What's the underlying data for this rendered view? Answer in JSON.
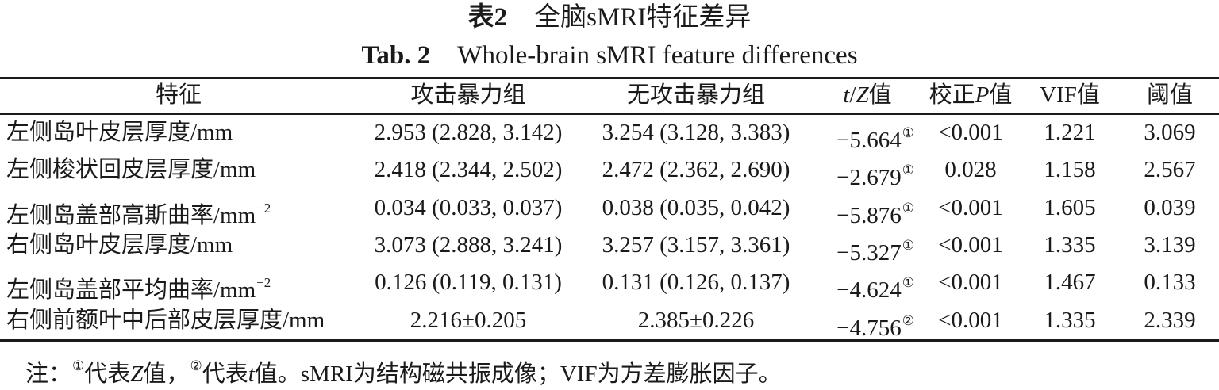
{
  "title": {
    "cn_tab": "表2",
    "cn_text": "全脑sMRI特征差异",
    "en_tab": "Tab. 2",
    "en_text": "Whole-brain sMRI feature differences"
  },
  "header": {
    "feature": "特征",
    "aggressive": "攻击暴力组",
    "non_aggressive": "无攻击暴力组",
    "tz_t": "t",
    "tz_slash": "/",
    "tz_z": "Z",
    "tz_suffix": "值",
    "p_prefix": "校正",
    "p_p": "P",
    "p_suffix": "值",
    "vif": "VIF值",
    "threshold": "阈值"
  },
  "rows": [
    {
      "feature": "左侧岛叶皮层厚度/mm",
      "unit_sup": "",
      "aggressive": "2.953 (2.828, 3.142)",
      "non_aggressive": "3.254 (3.128, 3.383)",
      "tz": "−5.664",
      "mark": "①",
      "p": "<0.001",
      "vif": "1.221",
      "threshold": "3.069"
    },
    {
      "feature": "左侧梭状回皮层厚度/mm",
      "unit_sup": "",
      "aggressive": "2.418 (2.344, 2.502)",
      "non_aggressive": "2.472 (2.362, 2.690)",
      "tz": "−2.679",
      "mark": "①",
      "p": "0.028",
      "vif": "1.158",
      "threshold": "2.567"
    },
    {
      "feature": "左侧岛盖部高斯曲率/mm",
      "unit_sup": "−2",
      "aggressive": "0.034 (0.033, 0.037)",
      "non_aggressive": "0.038 (0.035, 0.042)",
      "tz": "−5.876",
      "mark": "①",
      "p": "<0.001",
      "vif": "1.605",
      "threshold": "0.039"
    },
    {
      "feature": "右侧岛叶皮层厚度/mm",
      "unit_sup": "",
      "aggressive": "3.073 (2.888, 3.241)",
      "non_aggressive": "3.257 (3.157, 3.361)",
      "tz": "−5.327",
      "mark": "①",
      "p": "<0.001",
      "vif": "1.335",
      "threshold": "3.139"
    },
    {
      "feature": "左侧岛盖部平均曲率/mm",
      "unit_sup": "−2",
      "aggressive": "0.126 (0.119, 0.131)",
      "non_aggressive": "0.131 (0.126, 0.137)",
      "tz": "−4.624",
      "mark": "①",
      "p": "<0.001",
      "vif": "1.467",
      "threshold": "0.133"
    },
    {
      "feature": "右侧前额叶中后部皮层厚度/mm",
      "unit_sup": "",
      "aggressive": "2.216±0.205",
      "non_aggressive": "2.385±0.226",
      "tz": "−4.756",
      "mark": "②",
      "p": "<0.001",
      "vif": "1.335",
      "threshold": "2.339"
    }
  ],
  "note": {
    "prefix": "注：",
    "mark1": "①",
    "text1": "代表",
    "z": "Z",
    "text2": "值，",
    "mark2": "②",
    "text3": "代表",
    "t": "t",
    "text4": "值。sMRI为结构磁共振成像；VIF为方差膨胀因子。"
  }
}
